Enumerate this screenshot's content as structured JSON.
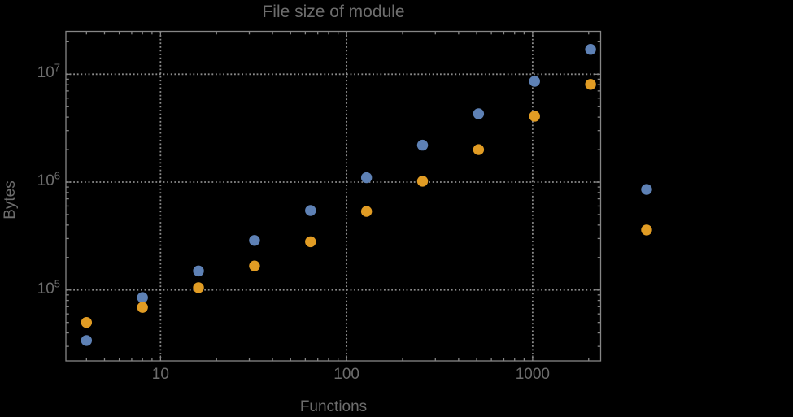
{
  "chart_data": {
    "type": "scatter",
    "title": "File size of module",
    "xlabel": "Functions",
    "ylabel": "Bytes",
    "xscale": "log",
    "yscale": "log",
    "xlim": [
      3.1,
      2320
    ],
    "ylim": [
      22000,
      25000000
    ],
    "grid": "dotted",
    "legend": "none",
    "x": [
      4,
      8,
      16,
      32,
      64,
      128,
      256,
      512,
      1024,
      2048,
      4096
    ],
    "series": [
      {
        "name": "blue",
        "color": "#5e81b5",
        "values": [
          34000,
          85000,
          150000,
          288000,
          545000,
          1100000,
          2200000,
          4300000,
          8600000,
          17000000,
          855000
        ]
      },
      {
        "name": "orange",
        "color": "#e19c24",
        "values": [
          50000,
          69000,
          105000,
          167000,
          280000,
          535000,
          1020000,
          2000000,
          4080000,
          8050000,
          360000
        ]
      }
    ],
    "x_ticks": [
      {
        "value": 10,
        "label": "10"
      },
      {
        "value": 100,
        "label": "100"
      },
      {
        "value": 1000,
        "label": "1000"
      }
    ],
    "y_ticks": [
      {
        "value": 100000,
        "base": "10",
        "exp": "5"
      },
      {
        "value": 1000000,
        "base": "10",
        "exp": "6"
      },
      {
        "value": 10000000,
        "base": "10",
        "exp": "7"
      }
    ]
  },
  "colors": {
    "background": "#000000",
    "text": "#6d6d6d",
    "frame": "#868686",
    "grid": "#8c8c8c"
  }
}
